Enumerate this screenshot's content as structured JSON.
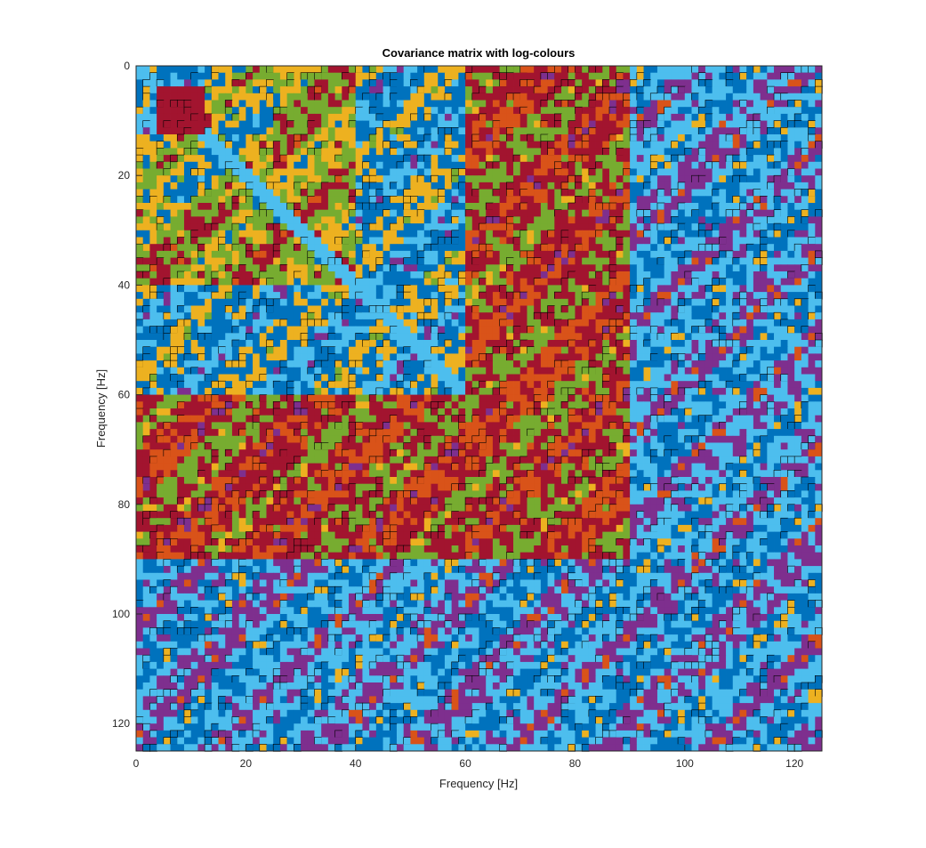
{
  "chart_data": {
    "type": "heatmap",
    "title": "Covariance matrix with log-colours",
    "xlabel": "Frequency [Hz]",
    "ylabel": "Frequency [Hz]",
    "xlim": [
      0,
      125
    ],
    "ylim": [
      0,
      125
    ],
    "y_direction": "reverse",
    "grid": false,
    "legend": "none",
    "x_ticks": [
      0,
      20,
      40,
      60,
      80,
      100,
      120
    ],
    "y_ticks": [
      0,
      20,
      40,
      60,
      80,
      100,
      120
    ],
    "x_tick_labels": [
      "0",
      "20",
      "40",
      "60",
      "80",
      "100",
      "120"
    ],
    "y_tick_labels": [
      "0",
      "20",
      "40",
      "60",
      "80",
      "100",
      "120"
    ],
    "color_scale": "log",
    "contour_line_color": "#000000",
    "colormap": [
      "#4DBEEE",
      "#0072BD",
      "#EDB120",
      "#77AC30",
      "#A2142F",
      "#D95319",
      "#7E2F8E"
    ],
    "region_levels": {
      "description_levels": "0=light-blue 1=blue 2=yellow 3=green 4=dark-red 5=orange 6=purple",
      "bands": [
        {
          "from": 0,
          "to": 3,
          "level": 4
        },
        {
          "from": 3,
          "to": 12,
          "level": 1
        },
        {
          "from": 12,
          "to": 25,
          "level": 2
        },
        {
          "from": 25,
          "to": 40,
          "level": 3
        },
        {
          "from": 40,
          "to": 60,
          "level": 1
        },
        {
          "from": 60,
          "to": 90,
          "level": 4
        },
        {
          "from": 90,
          "to": 125,
          "level": 0
        }
      ]
    }
  }
}
